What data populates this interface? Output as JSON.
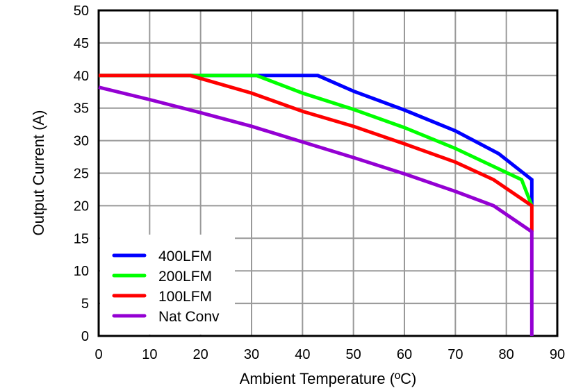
{
  "chart_data": {
    "type": "line",
    "title": "",
    "xlabel": "Ambient Temperature (ºC)",
    "ylabel": "Output Current (A)",
    "xlim": [
      0,
      90
    ],
    "ylim": [
      0,
      50
    ],
    "xticks": [
      0,
      10,
      20,
      30,
      40,
      50,
      60,
      70,
      80,
      90
    ],
    "yticks": [
      0,
      5,
      10,
      15,
      20,
      25,
      30,
      35,
      40,
      45,
      50
    ],
    "grid": true,
    "legend_position": "bottom-left",
    "series": [
      {
        "name": "400LFM",
        "color": "#0000FF",
        "x": [
          0,
          43,
          50,
          60,
          70,
          78.5,
          85,
          85
        ],
        "y": [
          40,
          40,
          37.6,
          34.7,
          31.5,
          28,
          24,
          20
        ]
      },
      {
        "name": "200LFM",
        "color": "#00FF00",
        "x": [
          0,
          31,
          40,
          50,
          60,
          70,
          83,
          85
        ],
        "y": [
          40,
          40,
          37.3,
          34.8,
          32,
          28.8,
          24,
          20
        ]
      },
      {
        "name": "100LFM",
        "color": "#FF0000",
        "x": [
          0,
          18,
          30,
          40,
          50,
          60,
          70,
          77.5,
          85,
          85
        ],
        "y": [
          40,
          40,
          37.3,
          34.5,
          32.2,
          29.5,
          26.7,
          24,
          20,
          16
        ]
      },
      {
        "name": "Nat Conv",
        "color": "#9400D3",
        "x": [
          0,
          10,
          20,
          30,
          40,
          50,
          60,
          70,
          77.5,
          85,
          85
        ],
        "y": [
          38.2,
          36.3,
          34.3,
          32.2,
          29.8,
          27.4,
          24.9,
          22.2,
          20,
          16,
          0
        ]
      }
    ]
  }
}
